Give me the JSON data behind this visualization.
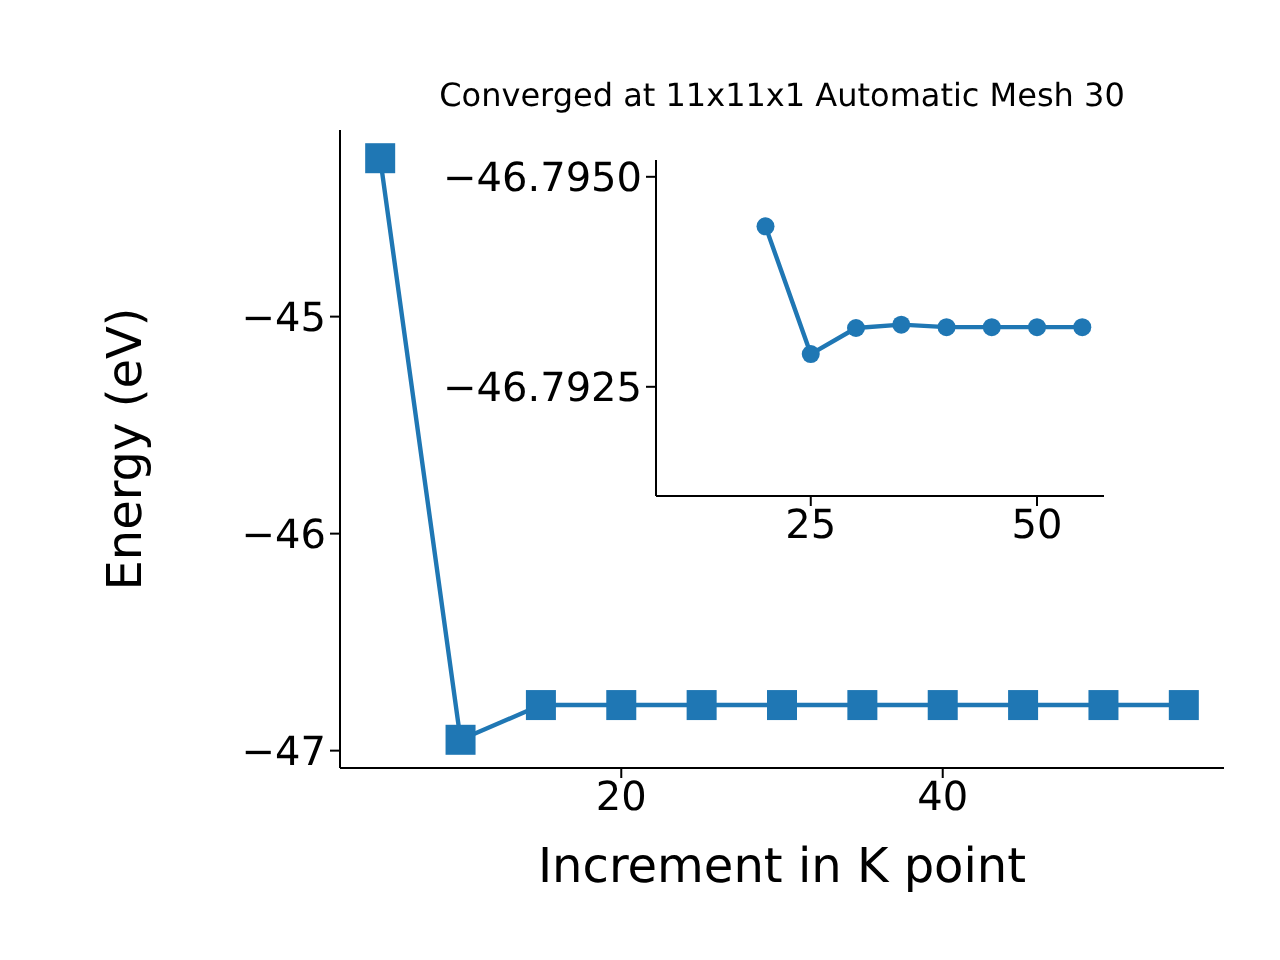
{
  "chart_data": [
    {
      "type": "line",
      "title": "Converged at 11x11x1 Automatic Mesh 30",
      "xlabel": "Increment in K point",
      "ylabel": "Energy (eV)",
      "x": [
        5,
        10,
        15,
        20,
        25,
        30,
        35,
        40,
        45,
        50,
        55
      ],
      "series": [
        {
          "color": "#1f77b4",
          "values": [
            -44.27,
            -46.95,
            -46.79,
            -46.79,
            -46.79,
            -46.79,
            -46.79,
            -46.79,
            -46.79,
            -46.79,
            -46.79
          ]
        }
      ],
      "marker": "square",
      "xlim": [
        2.5,
        57.5
      ],
      "xticks": [
        20,
        40
      ],
      "ylim": [
        -47.08,
        -44.14
      ],
      "yticks": [
        {
          "value": -47,
          "label": "−47"
        },
        {
          "value": -46,
          "label": "−46"
        },
        {
          "value": -45,
          "label": "−45"
        }
      ]
    },
    {
      "type": "line",
      "x": [
        20,
        25,
        30,
        35,
        40,
        45,
        50,
        55
      ],
      "series": [
        {
          "color": "#1f77b4",
          "values": [
            -46.79441,
            -46.79289,
            -46.7932,
            -46.79324,
            -46.79321,
            -46.79321,
            -46.79321,
            -46.79321
          ]
        }
      ],
      "marker": "circle",
      "xlim": [
        7.9,
        57.4
      ],
      "xticks": [
        25,
        50
      ],
      "ylim": [
        -46.7912,
        -46.7952
      ],
      "yticks": [
        {
          "value": -46.795,
          "label": "−46.7950"
        },
        {
          "value": -46.7925,
          "label": "−46.7925"
        }
      ]
    }
  ]
}
